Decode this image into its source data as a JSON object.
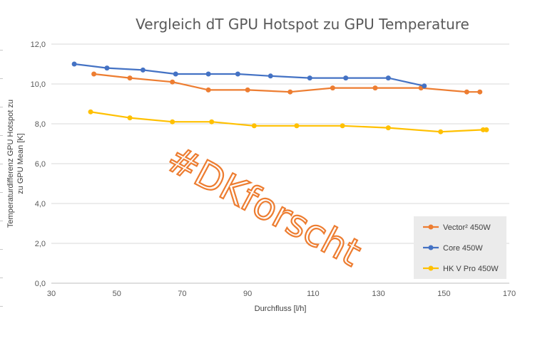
{
  "chart_data": {
    "type": "line",
    "title": "Vergleich dT GPU Hotspot zu GPU Temperature",
    "xlabel": "Durchfluss [l/h]",
    "ylabel": "Temperaturdifferenz GPU Hotspot zu zu GPU Mean  [K]",
    "ylabel_lines": [
      "Temperaturdifferenz GPU Hotspot zu",
      "zu GPU Mean  [K]"
    ],
    "xlim": [
      30,
      170
    ],
    "ylim": [
      0,
      12
    ],
    "x_ticks": [
      30,
      50,
      70,
      90,
      110,
      130,
      150,
      170
    ],
    "y_ticks": [
      "0,0",
      "2,0",
      "4,0",
      "6,0",
      "8,0",
      "10,0",
      "12,0"
    ],
    "grid": "horizontal",
    "legend_position": "lower-right",
    "watermark": "#DKforscht",
    "series": [
      {
        "name": "Vector² 450W",
        "color": "#ED7D31",
        "points": [
          [
            43,
            10.5
          ],
          [
            54,
            10.3
          ],
          [
            67,
            10.1
          ],
          [
            78,
            9.7
          ],
          [
            90,
            9.7
          ],
          [
            103,
            9.6
          ],
          [
            116,
            9.8
          ],
          [
            129,
            9.8
          ],
          [
            143,
            9.8
          ],
          [
            157,
            9.6
          ],
          [
            161,
            9.6
          ]
        ]
      },
      {
        "name": "Core 450W",
        "color": "#4472C4",
        "points": [
          [
            37,
            11.0
          ],
          [
            47,
            10.8
          ],
          [
            58,
            10.7
          ],
          [
            68,
            10.5
          ],
          [
            78,
            10.5
          ],
          [
            87,
            10.5
          ],
          [
            97,
            10.4
          ],
          [
            109,
            10.3
          ],
          [
            120,
            10.3
          ],
          [
            133,
            10.3
          ],
          [
            144,
            9.9
          ]
        ]
      },
      {
        "name": "HK V Pro 450W",
        "color": "#FFC000",
        "points": [
          [
            42,
            8.6
          ],
          [
            54,
            8.3
          ],
          [
            67,
            8.1
          ],
          [
            79,
            8.1
          ],
          [
            92,
            7.9
          ],
          [
            105,
            7.9
          ],
          [
            119,
            7.9
          ],
          [
            133,
            7.8
          ],
          [
            149,
            7.6
          ],
          [
            162,
            7.7
          ],
          [
            163,
            7.7
          ]
        ]
      }
    ]
  }
}
